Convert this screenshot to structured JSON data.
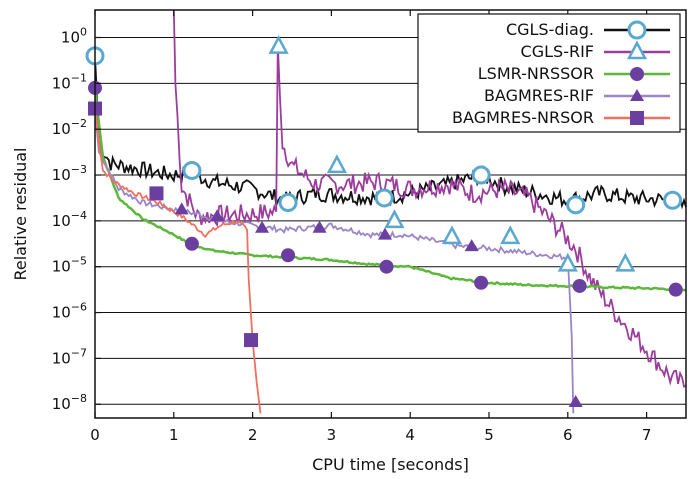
{
  "chart_data": {
    "type": "line",
    "title": "",
    "xlabel": "CPU time [seconds]",
    "ylabel": "Relative residual",
    "xlim": [
      0,
      7.5
    ],
    "ylim_log10": [
      -8.3,
      0.6
    ],
    "yscale": "log",
    "grid": "horizontal",
    "legend_position": "top-right",
    "x_ticks": [
      "0",
      "1",
      "2",
      "3",
      "4",
      "5",
      "6",
      "7"
    ],
    "y_ticks": [
      {
        "base": "10",
        "exp": "0"
      },
      {
        "base": "10",
        "exp": "−1"
      },
      {
        "base": "10",
        "exp": "−2"
      },
      {
        "base": "10",
        "exp": "−3"
      },
      {
        "base": "10",
        "exp": "−4"
      },
      {
        "base": "10",
        "exp": "−5"
      },
      {
        "base": "10",
        "exp": "−6"
      },
      {
        "base": "10",
        "exp": "−7"
      },
      {
        "base": "10",
        "exp": "−8"
      }
    ],
    "series": [
      {
        "name": "CGLS-diag.",
        "color": "#111111",
        "marker": "circle-open",
        "marker_color": "#5aa8d0",
        "line": [
          [
            0,
            -0.4
          ],
          [
            0.05,
            -2.3
          ],
          [
            0.2,
            -2.75
          ],
          [
            0.5,
            -2.85
          ],
          [
            0.8,
            -2.95
          ],
          [
            1.0,
            -3.0
          ],
          [
            1.2,
            -2.95
          ],
          [
            1.5,
            -3.15
          ],
          [
            2.0,
            -3.3
          ],
          [
            2.4,
            -3.55
          ],
          [
            2.8,
            -3.4
          ],
          [
            3.2,
            -3.45
          ],
          [
            3.65,
            -3.5
          ],
          [
            4.0,
            -3.4
          ],
          [
            4.5,
            -3.2
          ],
          [
            4.9,
            -3.0
          ],
          [
            5.2,
            -3.25
          ],
          [
            5.6,
            -3.4
          ],
          [
            6.0,
            -3.55
          ],
          [
            6.4,
            -3.4
          ],
          [
            6.8,
            -3.5
          ],
          [
            7.3,
            -3.55
          ],
          [
            7.5,
            -3.7
          ]
        ],
        "markers": [
          [
            0,
            -0.4
          ],
          [
            1.23,
            -2.9
          ],
          [
            2.45,
            -3.6
          ],
          [
            3.67,
            -3.5
          ],
          [
            4.9,
            -3.0
          ],
          [
            6.1,
            -3.65
          ],
          [
            7.33,
            -3.55
          ]
        ]
      },
      {
        "name": "CGLS-RIF",
        "color": "#9c3c9c",
        "marker": "triangle-open",
        "marker_color": "#5aa8d0",
        "line": [
          [
            1.0,
            0.7
          ],
          [
            1.02,
            -1.0
          ],
          [
            1.1,
            -3.25
          ],
          [
            1.3,
            -3.9
          ],
          [
            2.0,
            -3.85
          ],
          [
            2.3,
            -3.8
          ],
          [
            2.32,
            -0.2
          ],
          [
            2.38,
            -2.3
          ],
          [
            2.5,
            -2.8
          ],
          [
            2.8,
            -3.2
          ],
          [
            3.2,
            -3.2
          ],
          [
            3.6,
            -3.15
          ],
          [
            4.0,
            -3.3
          ],
          [
            4.5,
            -3.2
          ],
          [
            4.8,
            -3.4
          ],
          [
            5.2,
            -3.3
          ],
          [
            5.5,
            -3.5
          ],
          [
            5.9,
            -4.2
          ],
          [
            6.1,
            -4.6
          ],
          [
            6.3,
            -5.3
          ],
          [
            6.6,
            -6.0
          ],
          [
            7.0,
            -6.8
          ],
          [
            7.3,
            -7.4
          ],
          [
            7.5,
            -7.6
          ]
        ],
        "markers": [
          [
            2.33,
            -0.2
          ],
          [
            3.07,
            -2.8
          ],
          [
            3.8,
            -4.0
          ],
          [
            4.53,
            -4.35
          ],
          [
            5.27,
            -4.35
          ],
          [
            6.0,
            -4.95
          ],
          [
            6.73,
            -4.95
          ]
        ]
      },
      {
        "name": "LSMR-NRSSOR",
        "color": "#5bb83a",
        "marker": "circle-filled",
        "marker_color": "#6a3fa0",
        "line": [
          [
            0,
            -1.1
          ],
          [
            0.1,
            -2.6
          ],
          [
            0.3,
            -3.5
          ],
          [
            0.6,
            -3.95
          ],
          [
            1.0,
            -4.3
          ],
          [
            1.2,
            -4.5
          ],
          [
            1.5,
            -4.65
          ],
          [
            2.0,
            -4.75
          ],
          [
            2.5,
            -4.8
          ],
          [
            3.0,
            -4.85
          ],
          [
            3.5,
            -4.95
          ],
          [
            4.0,
            -5.0
          ],
          [
            4.5,
            -5.25
          ],
          [
            5.0,
            -5.35
          ],
          [
            5.5,
            -5.4
          ],
          [
            6.0,
            -5.42
          ],
          [
            6.5,
            -5.45
          ],
          [
            7.0,
            -5.47
          ],
          [
            7.5,
            -5.5
          ]
        ],
        "markers": [
          [
            0,
            -1.1
          ],
          [
            1.23,
            -4.5
          ],
          [
            2.45,
            -4.75
          ],
          [
            3.7,
            -5.0
          ],
          [
            4.9,
            -5.35
          ],
          [
            6.15,
            -5.42
          ],
          [
            7.37,
            -5.5
          ]
        ]
      },
      {
        "name": "BAGMRES-RIF",
        "color": "#9b85c8",
        "marker": "triangle-filled",
        "marker_color": "#6a3fa0",
        "line": [
          [
            0,
            -1.6
          ],
          [
            0.05,
            -2.5
          ],
          [
            0.3,
            -3.3
          ],
          [
            0.6,
            -3.6
          ],
          [
            1.0,
            -3.75
          ],
          [
            1.3,
            -3.85
          ],
          [
            1.6,
            -4.0
          ],
          [
            2.0,
            -4.1
          ],
          [
            2.4,
            -4.2
          ],
          [
            3.0,
            -4.1
          ],
          [
            3.5,
            -4.3
          ],
          [
            3.9,
            -4.3
          ],
          [
            4.2,
            -4.4
          ],
          [
            4.6,
            -4.55
          ],
          [
            5.0,
            -4.6
          ],
          [
            5.5,
            -4.7
          ],
          [
            6.0,
            -4.8
          ],
          [
            6.05,
            -6.5
          ],
          [
            6.07,
            -8.2
          ]
        ],
        "markers": [
          [
            1.1,
            -3.75
          ],
          [
            1.55,
            -3.9
          ],
          [
            2.12,
            -4.15
          ],
          [
            2.85,
            -4.15
          ],
          [
            3.68,
            -4.3
          ],
          [
            4.78,
            -4.55
          ],
          [
            6.1,
            -7.95
          ]
        ]
      },
      {
        "name": "BAGMRES-NRSOR",
        "color": "#f07060",
        "marker": "square-filled",
        "marker_color": "#6a3fa0",
        "line": [
          [
            0,
            -1.55
          ],
          [
            0.1,
            -2.9
          ],
          [
            0.25,
            -3.15
          ],
          [
            0.5,
            -3.4
          ],
          [
            0.8,
            -3.6
          ],
          [
            1.1,
            -3.9
          ],
          [
            1.4,
            -4.3
          ],
          [
            1.6,
            -4.1
          ],
          [
            1.8,
            -4.0
          ],
          [
            1.93,
            -4.2
          ],
          [
            1.95,
            -5.3
          ],
          [
            2.0,
            -6.6
          ],
          [
            2.05,
            -7.5
          ],
          [
            2.1,
            -8.2
          ]
        ],
        "markers": [
          [
            0,
            -1.55
          ],
          [
            0.78,
            -3.4
          ],
          [
            1.98,
            -6.6
          ]
        ]
      }
    ]
  }
}
